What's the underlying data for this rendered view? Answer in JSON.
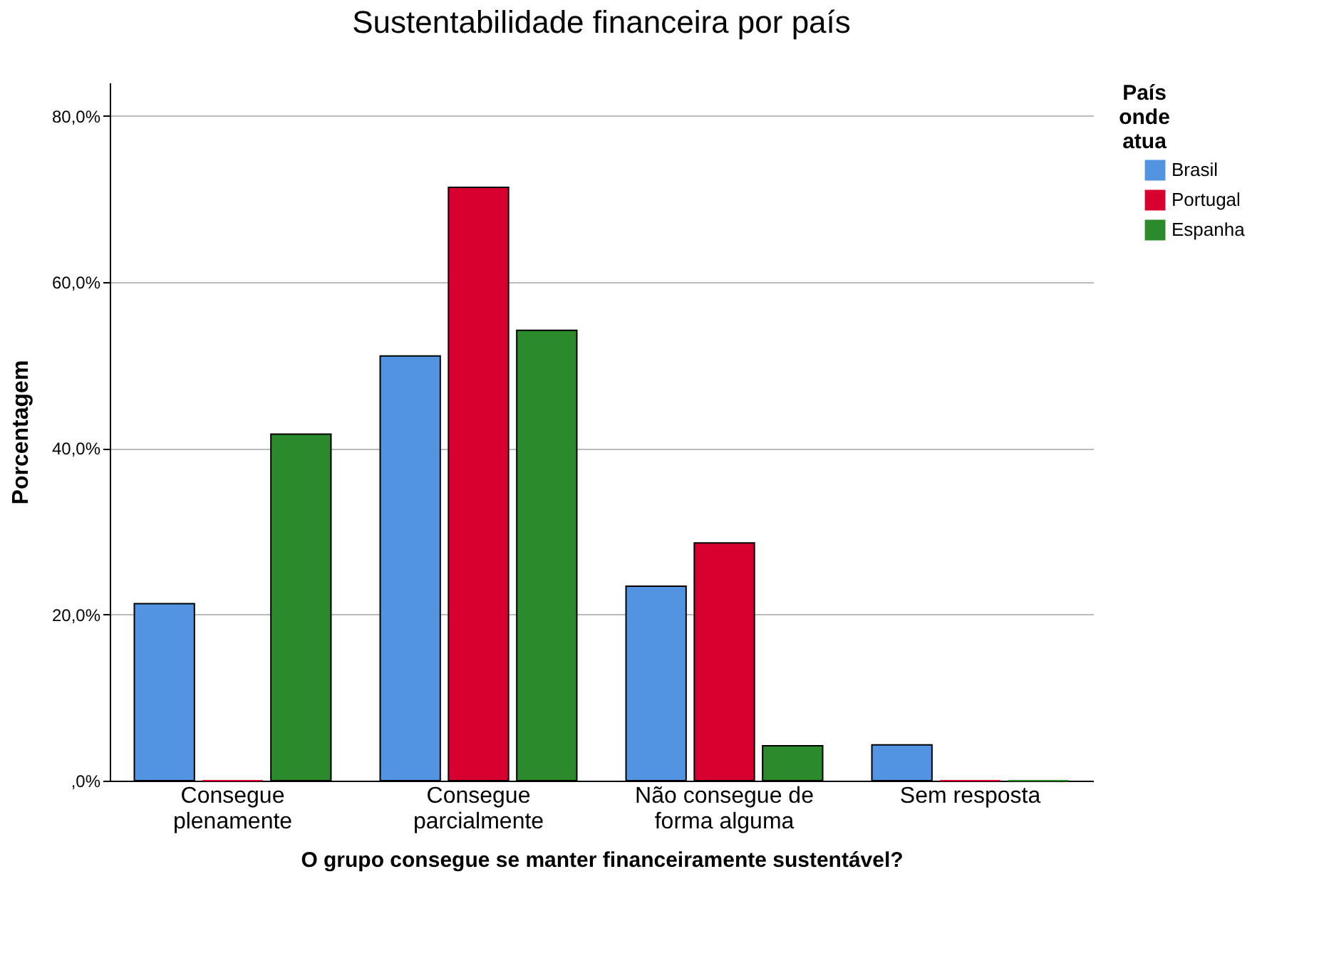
{
  "chart_data": {
    "type": "bar",
    "title": "Sustentabilidade financeira por país",
    "xlabel": "O grupo consegue se manter financeiramente sustentável?",
    "ylabel": "Porcentagem",
    "legend_title": "País onde atua",
    "categories": [
      "Consegue plenamente",
      "Consegue parcialmente",
      "Não consegue de forma alguma",
      "Sem resposta"
    ],
    "series": [
      {
        "name": "Brasil",
        "color": "#5294e2",
        "values": [
          21.3,
          51.1,
          23.4,
          4.3
        ]
      },
      {
        "name": "Portugal",
        "color": "#d7002f",
        "values": [
          0,
          71.4,
          28.6,
          0
        ]
      },
      {
        "name": "Espanha",
        "color": "#2b8a2b",
        "values": [
          41.7,
          54.2,
          4.2,
          0
        ]
      }
    ],
    "ylim": [
      0,
      84
    ],
    "yticks": [
      {
        "value": 0,
        "label": ",0%"
      },
      {
        "value": 20,
        "label": "20,0%"
      },
      {
        "value": 40,
        "label": "40,0%"
      },
      {
        "value": 60,
        "label": "60,0%"
      },
      {
        "value": 80,
        "label": "80,0%"
      }
    ],
    "grid": "y",
    "legend": "top right"
  }
}
